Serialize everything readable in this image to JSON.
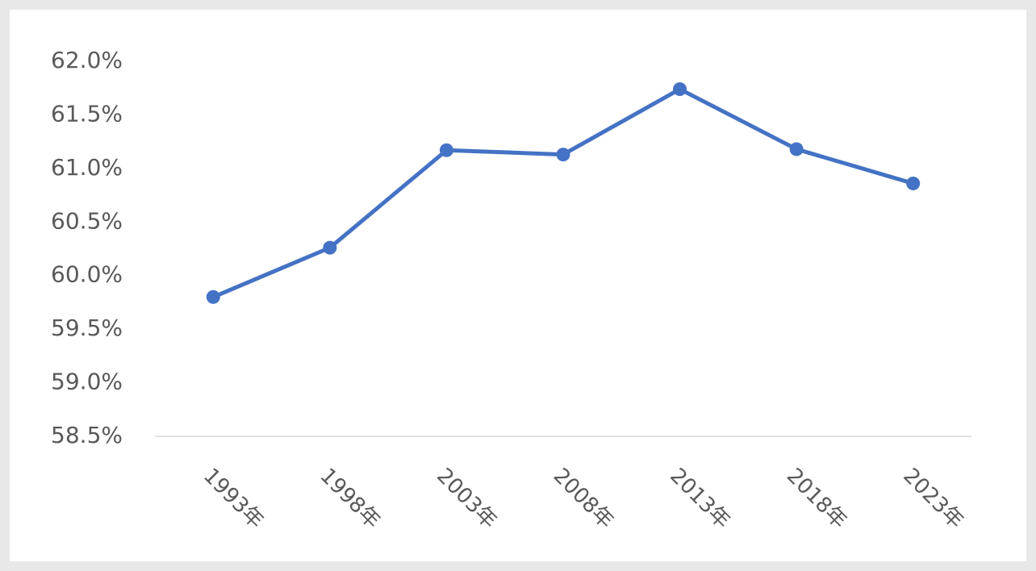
{
  "chart_data": {
    "type": "line",
    "categories": [
      "1993年",
      "1998年",
      "2003年",
      "2008年",
      "2013年",
      "2018年",
      "2023年"
    ],
    "series": [
      {
        "name": null,
        "color": "#4472c4",
        "values": [
          59.8,
          60.26,
          61.17,
          61.13,
          61.74,
          61.18,
          60.86
        ]
      }
    ],
    "ylim": [
      58.5,
      62.0
    ],
    "yticks": [
      {
        "value": 58.5,
        "label": "58.5%"
      },
      {
        "value": 59.0,
        "label": "59.0%"
      },
      {
        "value": 59.5,
        "label": "59.5%"
      },
      {
        "value": 60.0,
        "label": "60.0%"
      },
      {
        "value": 60.5,
        "label": "60.5%"
      },
      {
        "value": 61.0,
        "label": "61.0%"
      },
      {
        "value": 61.5,
        "label": "61.5%"
      },
      {
        "value": 62.0,
        "label": "62.0%"
      }
    ],
    "grid": false
  }
}
